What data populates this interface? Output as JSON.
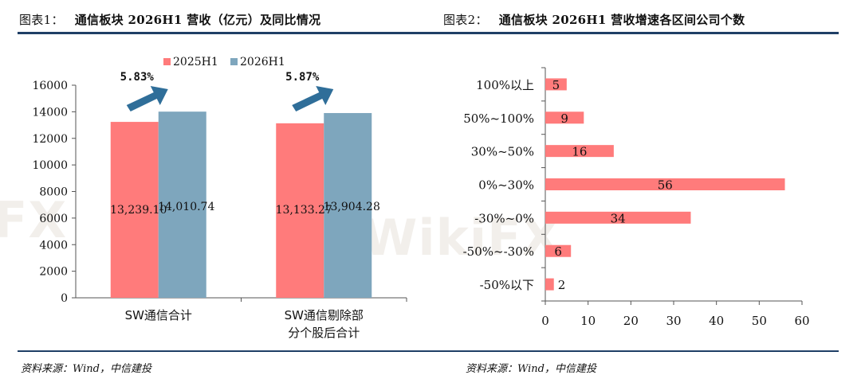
{
  "header_left": {
    "label": "图表1：",
    "title": "通信板块 2026H1 营收（亿元）及同比情况"
  },
  "header_right": {
    "label": "图表2：",
    "title": "通信板块 2026H1 营收增速各区间公司个数"
  },
  "source_left": "资料来源：Wind，中信建投",
  "source_right": "资料来源：Wind，中信建投",
  "watermark": "WikiFX",
  "chart_data": [
    {
      "type": "bar",
      "categories": [
        "SW通信合计",
        "SW通信剔除部\n分个股后合计"
      ],
      "series": [
        {
          "name": "2025H1",
          "values": [
            13239.1,
            13133.27
          ],
          "labels": [
            "13,239.10",
            "13,133.27"
          ],
          "color": "#ff7b7b"
        },
        {
          "name": "2026H1",
          "values": [
            14010.74,
            13904.28
          ],
          "labels": [
            "14,010.74",
            "13,904.28"
          ],
          "color": "#7ea6bd"
        }
      ],
      "growth_annotations": [
        "5.83%",
        "5.87%"
      ],
      "ylim": [
        0,
        16000
      ],
      "yticks": [
        "0",
        "2000",
        "4000",
        "6000",
        "8000",
        "10000",
        "12000",
        "14000",
        "16000"
      ],
      "legend": "top",
      "grid": false
    },
    {
      "type": "bar",
      "orientation": "horizontal",
      "categories": [
        "100%以上",
        "50%~100%",
        "30%~50%",
        "0%~30%",
        "-30%~0%",
        "-50%~-30%",
        "-50%以下"
      ],
      "values": [
        5,
        9,
        16,
        56,
        34,
        6,
        2
      ],
      "color": "#ff7b7b",
      "xlim": [
        0,
        60
      ],
      "xticks": [
        "0",
        "10",
        "20",
        "30",
        "40",
        "50",
        "60"
      ],
      "grid": false
    }
  ]
}
